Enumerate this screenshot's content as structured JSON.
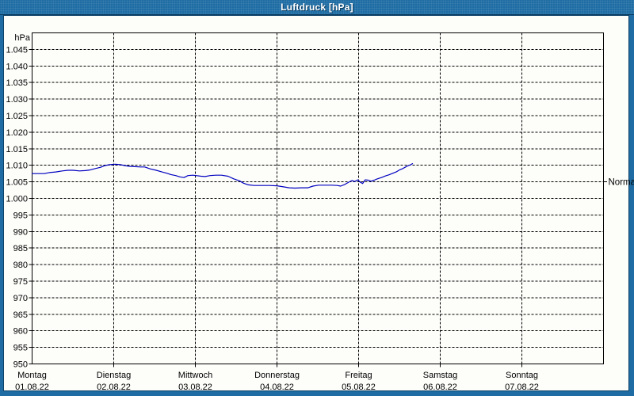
{
  "window": {
    "title": "Luftdruck [hPa]",
    "frame_color": "#1e6ca3",
    "frame_line_color": "#0d4168",
    "title_text_color": "#ffffff"
  },
  "chart_data": {
    "type": "line",
    "title": "Luftdruck [hPa]",
    "unit_label": "hPa",
    "grid": "dashed",
    "grid_color": "#000000",
    "plot_background": "#fdfdfa",
    "y_axis": {
      "min": 950,
      "max": 1050,
      "tick_step": 5,
      "ticks": [
        {
          "value": 1045,
          "label": "1.045"
        },
        {
          "value": 1040,
          "label": "1.040"
        },
        {
          "value": 1035,
          "label": "1.035"
        },
        {
          "value": 1030,
          "label": "1.030"
        },
        {
          "value": 1025,
          "label": "1.025"
        },
        {
          "value": 1020,
          "label": "1.020"
        },
        {
          "value": 1015,
          "label": "1.015"
        },
        {
          "value": 1010,
          "label": "1.010"
        },
        {
          "value": 1005,
          "label": "1.005"
        },
        {
          "value": 1000,
          "label": "1.000"
        },
        {
          "value": 995,
          "label": "995"
        },
        {
          "value": 990,
          "label": "990"
        },
        {
          "value": 985,
          "label": "985"
        },
        {
          "value": 980,
          "label": "980"
        },
        {
          "value": 975,
          "label": "975"
        },
        {
          "value": 970,
          "label": "970"
        },
        {
          "value": 965,
          "label": "965"
        },
        {
          "value": 960,
          "label": "960"
        },
        {
          "value": 955,
          "label": "955"
        },
        {
          "value": 950,
          "label": "950"
        }
      ]
    },
    "x_axis": {
      "range_days": [
        0,
        7
      ],
      "days": [
        {
          "weekday": "Montag",
          "date": "01.08.22"
        },
        {
          "weekday": "Dienstag",
          "date": "02.08.22"
        },
        {
          "weekday": "Mittwoch",
          "date": "03.08.22"
        },
        {
          "weekday": "Donnerstag",
          "date": "04.08.22"
        },
        {
          "weekday": "Freitag",
          "date": "05.08.22"
        },
        {
          "weekday": "Samstag",
          "date": "06.08.22"
        },
        {
          "weekday": "Sonntag",
          "date": "07.08.22"
        }
      ]
    },
    "annotations": [
      {
        "label": "Normal",
        "value": 1005
      }
    ],
    "series": [
      {
        "name": "Luftdruck",
        "color": "#0000c0",
        "points": [
          [
            0.0,
            1007.5
          ],
          [
            0.15,
            1007.5
          ],
          [
            0.21,
            1007.8
          ],
          [
            0.29,
            1008.0
          ],
          [
            0.37,
            1008.3
          ],
          [
            0.44,
            1008.5
          ],
          [
            0.5,
            1008.5
          ],
          [
            0.58,
            1008.3
          ],
          [
            0.65,
            1008.4
          ],
          [
            0.71,
            1008.6
          ],
          [
            0.77,
            1009.0
          ],
          [
            0.84,
            1009.4
          ],
          [
            0.89,
            1009.9
          ],
          [
            0.95,
            1010.2
          ],
          [
            1.02,
            1010.3
          ],
          [
            1.08,
            1010.2
          ],
          [
            1.14,
            1009.9
          ],
          [
            1.19,
            1009.7
          ],
          [
            1.26,
            1009.6
          ],
          [
            1.33,
            1009.5
          ],
          [
            1.38,
            1009.5
          ],
          [
            1.45,
            1008.9
          ],
          [
            1.52,
            1008.5
          ],
          [
            1.59,
            1008.0
          ],
          [
            1.65,
            1007.6
          ],
          [
            1.7,
            1007.2
          ],
          [
            1.76,
            1006.9
          ],
          [
            1.81,
            1006.5
          ],
          [
            1.86,
            1006.3
          ],
          [
            1.91,
            1006.9
          ],
          [
            1.97,
            1007.0
          ],
          [
            2.01,
            1006.9
          ],
          [
            2.07,
            1006.7
          ],
          [
            2.12,
            1006.6
          ],
          [
            2.18,
            1006.9
          ],
          [
            2.25,
            1007.0
          ],
          [
            2.32,
            1007.0
          ],
          [
            2.4,
            1006.7
          ],
          [
            2.47,
            1005.9
          ],
          [
            2.54,
            1005.3
          ],
          [
            2.59,
            1004.6
          ],
          [
            2.65,
            1004.1
          ],
          [
            2.72,
            1003.9
          ],
          [
            2.82,
            1003.9
          ],
          [
            2.91,
            1003.9
          ],
          [
            3.0,
            1003.8
          ],
          [
            3.08,
            1003.5
          ],
          [
            3.15,
            1003.2
          ],
          [
            3.22,
            1003.1
          ],
          [
            3.3,
            1003.2
          ],
          [
            3.38,
            1003.2
          ],
          [
            3.44,
            1003.7
          ],
          [
            3.51,
            1004.0
          ],
          [
            3.59,
            1004.0
          ],
          [
            3.67,
            1004.0
          ],
          [
            3.74,
            1003.9
          ],
          [
            3.78,
            1003.7
          ],
          [
            3.83,
            1004.2
          ],
          [
            3.88,
            1004.9
          ],
          [
            3.92,
            1005.4
          ],
          [
            3.95,
            1005.1
          ],
          [
            3.99,
            1005.6
          ],
          [
            4.02,
            1004.9
          ],
          [
            4.05,
            1004.5
          ],
          [
            4.08,
            1005.6
          ],
          [
            4.12,
            1005.5
          ],
          [
            4.15,
            1005.2
          ],
          [
            4.19,
            1005.5
          ],
          [
            4.23,
            1005.9
          ],
          [
            4.28,
            1006.3
          ],
          [
            4.33,
            1006.8
          ],
          [
            4.37,
            1007.1
          ],
          [
            4.42,
            1007.6
          ],
          [
            4.46,
            1008.0
          ],
          [
            4.5,
            1008.6
          ],
          [
            4.54,
            1009.0
          ],
          [
            4.57,
            1009.4
          ],
          [
            4.6,
            1009.8
          ],
          [
            4.62,
            1010.0
          ],
          [
            4.64,
            1010.2
          ],
          [
            4.66,
            1010.5
          ]
        ]
      }
    ]
  }
}
